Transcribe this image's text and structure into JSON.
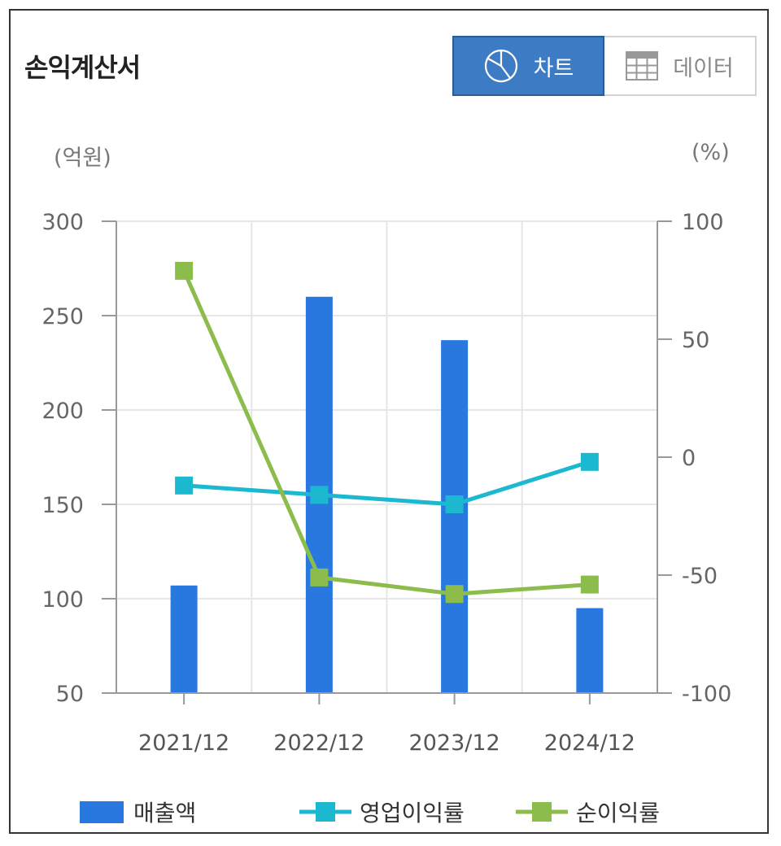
{
  "header": {
    "title": "손익계산서"
  },
  "toggle": {
    "chart_label": "차트",
    "data_label": "데이터"
  },
  "units": {
    "left": "(억원)",
    "right": "(%)"
  },
  "colors": {
    "revenue": "#2878e0",
    "op_margin": "#1cb8d0",
    "net_margin": "#8cbc4c",
    "toggle_active": "#3d7bc4"
  },
  "icons": {
    "chart": "pie-chart-icon",
    "data": "table-grid-icon"
  },
  "chart_data": {
    "type": "bar",
    "categories": [
      "2021/12",
      "2022/12",
      "2023/12",
      "2024/12"
    ],
    "y_left": {
      "label": "(억원)",
      "range": [
        50,
        300
      ],
      "ticks": [
        300,
        250,
        200,
        150,
        100,
        50
      ]
    },
    "y_right": {
      "label": "(%)",
      "range": [
        -100,
        100
      ],
      "ticks": [
        100,
        50,
        0,
        -50,
        -100
      ]
    },
    "grid": true,
    "legend_position": "bottom",
    "series": [
      {
        "name": "매출액",
        "type": "bar",
        "axis": "left",
        "values": [
          107,
          260,
          237,
          95
        ]
      },
      {
        "name": "영업이익률",
        "type": "line",
        "axis": "right",
        "values": [
          -12,
          -16,
          -20,
          -2
        ]
      },
      {
        "name": "순이익률",
        "type": "line",
        "axis": "right",
        "values": [
          79,
          -51,
          -58,
          -54
        ]
      }
    ]
  }
}
